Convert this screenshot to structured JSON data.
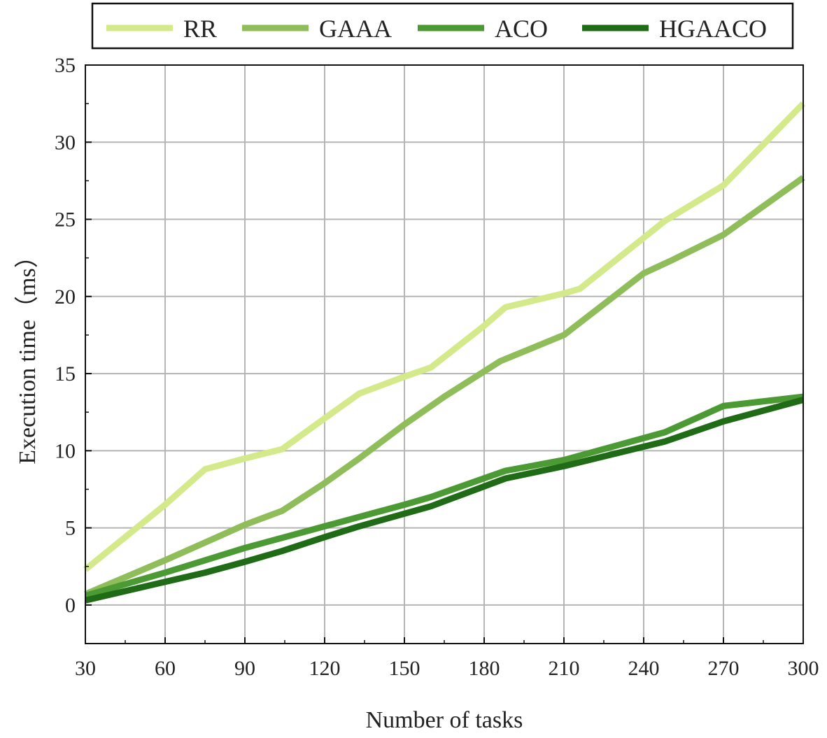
{
  "chart_data": {
    "type": "line",
    "title": "",
    "xlabel": "Number of tasks",
    "ylabel": "Execution time（ms）",
    "xlim": [
      30,
      300
    ],
    "ylim": [
      -2.5,
      35
    ],
    "x_ticks": [
      30,
      60,
      90,
      120,
      150,
      180,
      210,
      240,
      270,
      300
    ],
    "y_ticks": [
      0,
      5,
      10,
      15,
      20,
      25,
      30,
      35
    ],
    "grid": true,
    "legend_position": "top",
    "series": [
      {
        "name": "RR",
        "color": "#d4e98a",
        "x": [
          30,
          60,
          75,
          90,
          104,
          120,
          133,
          150,
          160,
          180,
          188,
          210,
          216,
          240,
          248,
          270,
          300
        ],
        "y": [
          2.3,
          6.5,
          8.8,
          9.5,
          10.1,
          12.1,
          13.7,
          14.8,
          15.4,
          18.1,
          19.3,
          20.2,
          20.5,
          23.8,
          24.9,
          27.2,
          32.5
        ]
      },
      {
        "name": "GAAA",
        "color": "#8fbd5a",
        "x": [
          30,
          60,
          90,
          104,
          120,
          133,
          150,
          165,
          186,
          210,
          240,
          250,
          270,
          300
        ],
        "y": [
          0.7,
          2.9,
          5.2,
          6.1,
          7.9,
          9.5,
          11.7,
          13.5,
          15.8,
          17.5,
          21.5,
          22.3,
          24.0,
          27.7
        ]
      },
      {
        "name": "ACO",
        "color": "#4c9a34",
        "x": [
          30,
          60,
          90,
          120,
          150,
          160,
          188,
          210,
          248,
          270,
          300
        ],
        "y": [
          0.6,
          2.1,
          3.7,
          5.1,
          6.5,
          7.0,
          8.7,
          9.4,
          11.2,
          12.9,
          13.5
        ]
      },
      {
        "name": "HGAACO",
        "color": "#1f6b16",
        "x": [
          30,
          60,
          75,
          90,
          104,
          120,
          133,
          160,
          188,
          210,
          248,
          270,
          300
        ],
        "y": [
          0.3,
          1.5,
          2.1,
          2.8,
          3.5,
          4.4,
          5.1,
          6.4,
          8.2,
          9.0,
          10.6,
          11.9,
          13.3
        ]
      }
    ]
  }
}
